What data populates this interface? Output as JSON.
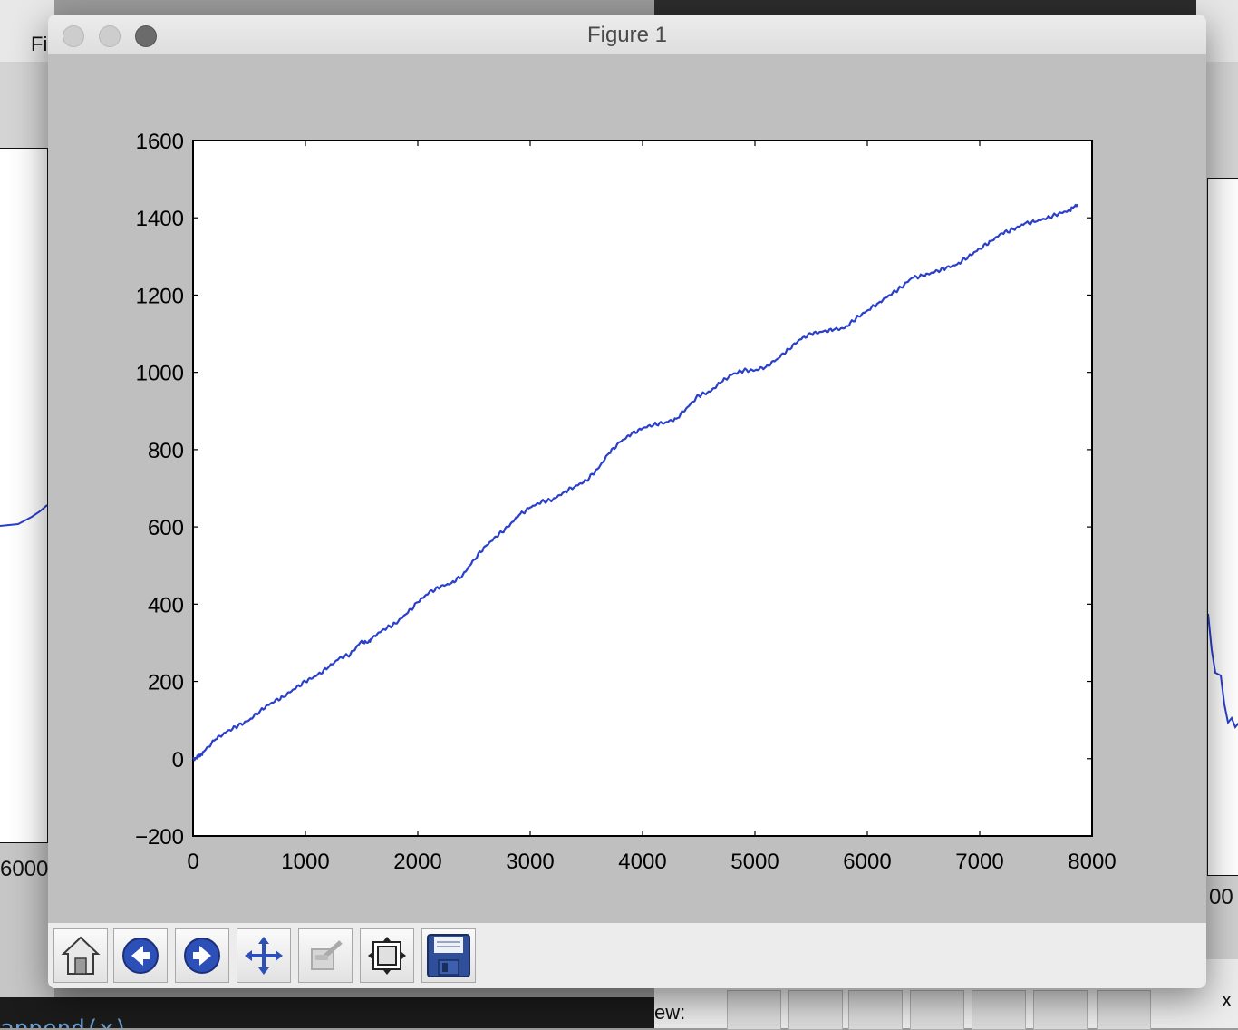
{
  "window": {
    "title": "Figure 1"
  },
  "background": {
    "left_title_fragment": "Fi",
    "left_tick": "6000",
    "right_tick": "00",
    "right_close": "x",
    "bottom_code": "append(x)",
    "bottom_view_label": "ew:"
  },
  "toolbar": {
    "buttons": [
      {
        "name": "home",
        "icon": "home-icon"
      },
      {
        "name": "back",
        "icon": "back-arrow-icon"
      },
      {
        "name": "forward",
        "icon": "forward-arrow-icon"
      },
      {
        "name": "pan",
        "icon": "pan-arrows-icon"
      },
      {
        "name": "zoom",
        "icon": "zoom-rect-icon"
      },
      {
        "name": "configure-subplots",
        "icon": "subplots-icon"
      },
      {
        "name": "save",
        "icon": "save-disk-icon"
      }
    ]
  },
  "chart_data": {
    "type": "line",
    "title": "",
    "xlabel": "",
    "ylabel": "",
    "xlim": [
      0,
      8000
    ],
    "ylim": [
      -200,
      1600
    ],
    "xticks": [
      0,
      1000,
      2000,
      3000,
      4000,
      5000,
      6000,
      7000,
      8000
    ],
    "yticks": [
      -200,
      0,
      200,
      400,
      600,
      800,
      1000,
      1200,
      1400,
      1600
    ],
    "ytick_labels": [
      "−200",
      "0",
      "200",
      "400",
      "600",
      "800",
      "1000",
      "1200",
      "1400",
      "1600"
    ],
    "grid": false,
    "line_color": "#2a3fcc",
    "series": [
      {
        "x": [
          0,
          50,
          100,
          200,
          300,
          400,
          500,
          600,
          700,
          800,
          900,
          1000,
          1100,
          1200,
          1300,
          1400,
          1500,
          1550,
          1600,
          1700,
          1800,
          1900,
          2000,
          2100,
          2200,
          2300,
          2400,
          2500,
          2600,
          2700,
          2800,
          2900,
          3000,
          3100,
          3200,
          3300,
          3400,
          3500,
          3600,
          3700,
          3800,
          3900,
          4000,
          4100,
          4200,
          4300,
          4400,
          4500,
          4600,
          4700,
          4800,
          4900,
          5000,
          5100,
          5200,
          5300,
          5400,
          5500,
          5600,
          5700,
          5800,
          5900,
          6000,
          6100,
          6200,
          6300,
          6400,
          6500,
          6600,
          6700,
          6800,
          6900,
          7000,
          7100,
          7200,
          7300,
          7400,
          7500,
          7600,
          7700,
          7800,
          7870
        ],
        "values": [
          0,
          5,
          20,
          50,
          70,
          85,
          100,
          125,
          145,
          160,
          180,
          200,
          215,
          235,
          260,
          270,
          305,
          300,
          315,
          335,
          350,
          375,
          405,
          430,
          445,
          455,
          475,
          515,
          550,
          575,
          600,
          630,
          650,
          665,
          670,
          690,
          705,
          720,
          750,
          790,
          820,
          840,
          855,
          865,
          870,
          880,
          910,
          940,
          950,
          975,
          995,
          1005,
          1005,
          1015,
          1035,
          1060,
          1085,
          1100,
          1105,
          1110,
          1115,
          1140,
          1160,
          1180,
          1200,
          1220,
          1245,
          1250,
          1260,
          1270,
          1280,
          1300,
          1320,
          1340,
          1360,
          1370,
          1385,
          1390,
          1400,
          1410,
          1420,
          1435
        ]
      }
    ]
  }
}
